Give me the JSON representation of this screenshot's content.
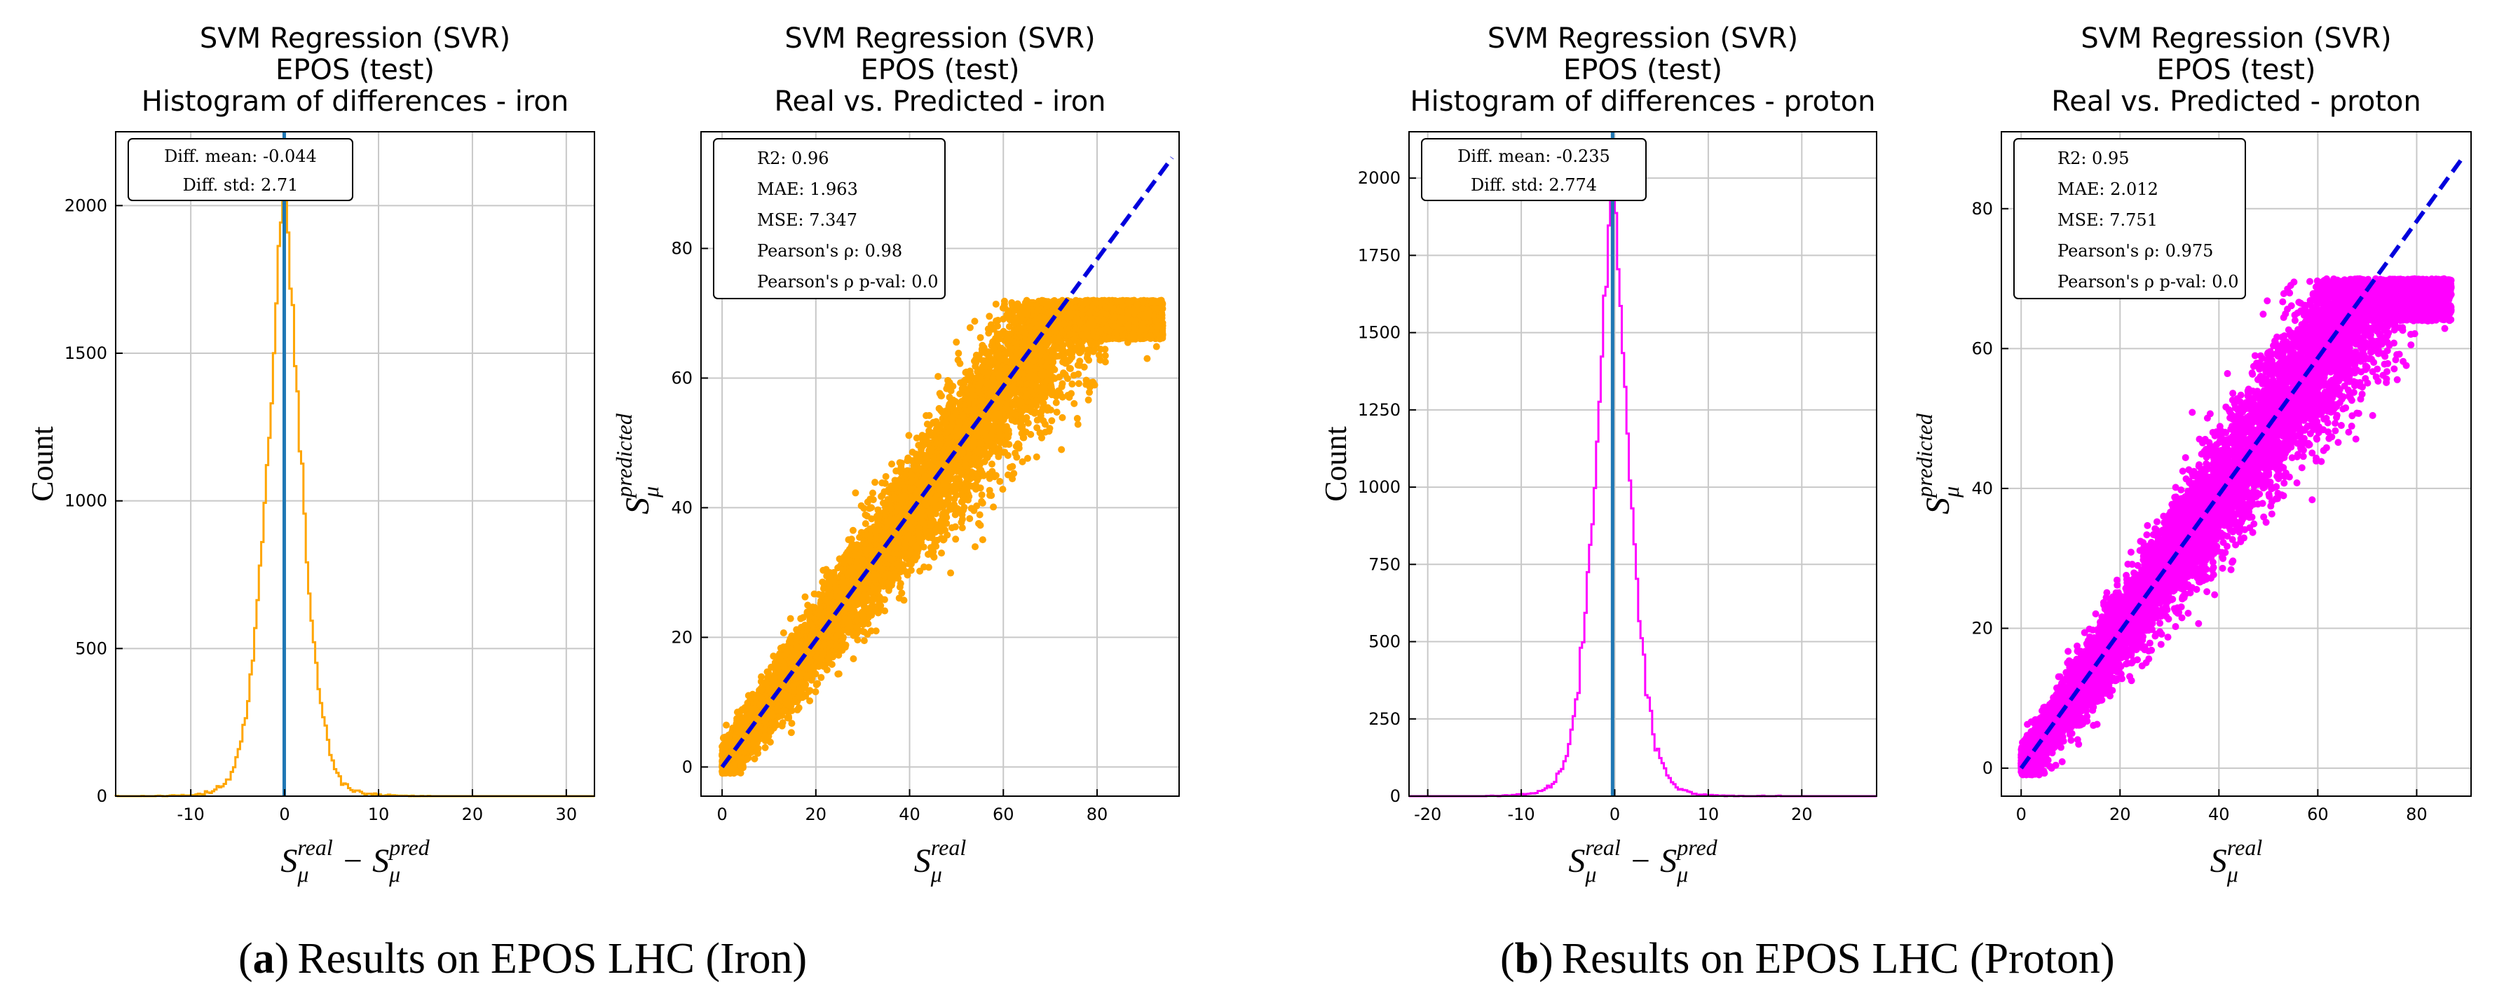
{
  "captions": {
    "a_label": "a",
    "a_text": "Results on EPOS LHC (Iron)",
    "b_label": "b",
    "b_text": "Results on EPOS LHC (Proton)"
  },
  "colors": {
    "iron": "#ffa500",
    "proton": "#ff00ff",
    "mean_line": "#1f77b4",
    "fit_line": "#0000dd",
    "grid": "#c8c8c8"
  },
  "chart_data": [
    {
      "type": "histogram",
      "title": [
        "SVM Regression (SVR)",
        "EPOS (test)",
        "Histogram of differences - iron"
      ],
      "xlabel": "S_μ^real − S_μ^pred",
      "ylabel": "Count",
      "xlim": [
        -18,
        33
      ],
      "ylim": [
        0,
        2250
      ],
      "xticks": [
        -10,
        0,
        10,
        20,
        30
      ],
      "yticks": [
        0,
        500,
        1000,
        1500,
        2000
      ],
      "series_color": "iron",
      "distribution": {
        "mean": -0.044,
        "std": 2.71,
        "peak_count": 2200
      },
      "stats": [
        "Diff. mean: -0.044",
        "Diff. std: 2.71"
      ]
    },
    {
      "type": "scatter",
      "title": [
        "SVM Regression (SVR)",
        "EPOS (test)",
        "Real vs. Predicted - iron"
      ],
      "xlabel": "S_μ^real",
      "ylabel": "S_μ^predicted",
      "xlim": [
        -4.5,
        97.5
      ],
      "ylim": [
        -4.5,
        98
      ],
      "xticks": [
        0,
        20,
        40,
        60,
        80
      ],
      "yticks": [
        0,
        20,
        40,
        60,
        80
      ],
      "series_color": "iron",
      "cloud": {
        "x_max": 94,
        "y_cap": 72,
        "slope": 0.98
      },
      "fit_line": {
        "x": [
          0,
          96
        ],
        "y": [
          0,
          94
        ]
      },
      "stats": [
        "R2: 0.96",
        "MAE: 1.963",
        "MSE: 7.347",
        "Pearson's ρ: 0.98",
        "Pearson's ρ p-val: 0.0"
      ]
    },
    {
      "type": "histogram",
      "title": [
        "SVM Regression (SVR)",
        "EPOS (test)",
        "Histogram of differences - proton"
      ],
      "xlabel": "S_μ^real − S_μ^pred",
      "ylabel": "Count",
      "xlim": [
        -22,
        28
      ],
      "ylim": [
        0,
        2150
      ],
      "xticks": [
        -20,
        -10,
        0,
        10,
        20
      ],
      "yticks": [
        0,
        250,
        500,
        750,
        1000,
        1250,
        1500,
        1750,
        2000
      ],
      "series_color": "proton",
      "distribution": {
        "mean": -0.235,
        "std": 2.774,
        "peak_count": 2100
      },
      "stats": [
        "Diff. mean: -0.235",
        "Diff. std: 2.774"
      ]
    },
    {
      "type": "scatter",
      "title": [
        "SVM Regression (SVR)",
        "EPOS (test)",
        "Real vs. Predicted - proton"
      ],
      "xlabel": "S_μ^real",
      "ylabel": "S_μ^predicted",
      "xlim": [
        -4,
        91
      ],
      "ylim": [
        -4,
        91
      ],
      "xticks": [
        0,
        20,
        40,
        60,
        80
      ],
      "yticks": [
        0,
        20,
        40,
        60,
        80
      ],
      "series_color": "proton",
      "cloud": {
        "x_max": 87,
        "y_cap": 70,
        "slope": 0.98
      },
      "fit_line": {
        "x": [
          0,
          89
        ],
        "y": [
          0,
          87
        ]
      },
      "stats": [
        "R2: 0.95",
        "MAE: 2.012",
        "MSE: 7.751",
        "Pearson's ρ: 0.975",
        "Pearson's ρ p-val: 0.0"
      ]
    }
  ]
}
